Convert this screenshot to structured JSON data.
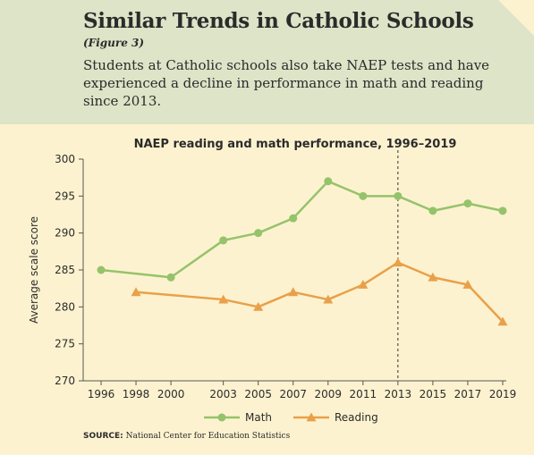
{
  "header": {
    "title": "Similar Trends in Catholic Schools",
    "figure_label": "(Figure 3)",
    "description": "Students at Catholic schools also take NAEP tests and have experienced a decline in performance in math and reading since 2013."
  },
  "source": {
    "label": "SOURCE:",
    "text": "National Center for Education Statistics"
  },
  "colors": {
    "math": "#95c36b",
    "reading": "#e9a04a",
    "header_bg": "#dde4c7",
    "chart_bg": "#fdf2cf"
  },
  "chart_data": {
    "type": "line",
    "title": "NAEP reading and math performance, 1996–2019",
    "ylabel": "Average scale score",
    "xlabel": "",
    "ylim": [
      270,
      300
    ],
    "yticks": [
      270,
      275,
      280,
      285,
      290,
      295,
      300
    ],
    "xticks": [
      1996,
      1998,
      2000,
      2003,
      2005,
      2007,
      2009,
      2011,
      2013,
      2015,
      2017,
      2019
    ],
    "reference_line_x": 2013,
    "grid": false,
    "legend_position": "bottom",
    "series": [
      {
        "name": "Math",
        "marker": "circle",
        "x": [
          1996,
          2000,
          2003,
          2005,
          2007,
          2009,
          2011,
          2013,
          2015,
          2017,
          2019
        ],
        "values": [
          285,
          284,
          289,
          290,
          292,
          297,
          295,
          295,
          293,
          294,
          293
        ]
      },
      {
        "name": "Reading",
        "marker": "triangle",
        "x": [
          1998,
          2003,
          2005,
          2007,
          2009,
          2011,
          2013,
          2015,
          2017,
          2019
        ],
        "values": [
          282,
          281,
          280,
          282,
          281,
          283,
          286,
          284,
          283,
          278
        ]
      }
    ]
  }
}
